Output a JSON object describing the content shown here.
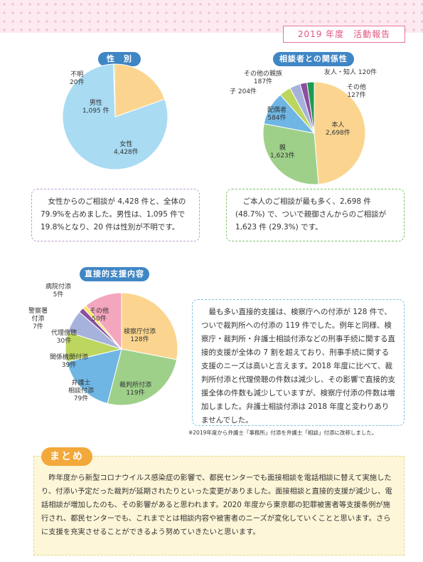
{
  "header": {
    "title": "2019 年度　活動報告"
  },
  "colors": {
    "blue_light": "#a9dbf3",
    "peach": "#fbd58f",
    "green": "#9ed08a",
    "teal_blue": "#6fb6e4",
    "olive": "#bcd65f",
    "lavender": "#a6b2dc",
    "purple": "#8c4f9e",
    "dark_green": "#1f9a52",
    "yellow": "#fde35a",
    "pink": "#f3a6bd",
    "pill_blue": "#3f86c5"
  },
  "charts": {
    "gender": {
      "title": "性　別",
      "labels": {
        "unknown": [
          "不明",
          "20件"
        ],
        "male": [
          "男性",
          "1,095 件"
        ],
        "female": [
          "女性",
          "4,428件"
        ]
      }
    },
    "relation": {
      "title": "相談者との関係性",
      "labels": {
        "self": [
          "本人",
          "2,698件"
        ],
        "parent": [
          "親",
          "1,623件"
        ],
        "spouse": [
          "配偶者",
          "584件"
        ],
        "child": [
          "子 204件"
        ],
        "other_relative": [
          "その他の親族",
          "187件"
        ],
        "friend": [
          "友人・知人 120件"
        ],
        "other": [
          "その他",
          "127件"
        ]
      }
    },
    "support": {
      "title": "直接的支援内容",
      "labels": {
        "prosecutor": [
          "検察庁付添",
          "128件"
        ],
        "court": [
          "裁判所付添",
          "119件"
        ],
        "lawyer": [
          "弁護士",
          "相談付添",
          "79件"
        ],
        "agency": [
          "関係機関付添",
          "39件"
        ],
        "agent": [
          "代理傍聴",
          "30件"
        ],
        "police": [
          "警察署",
          "付添",
          "7件"
        ],
        "hospital": [
          "病院付添",
          "5件"
        ],
        "other": [
          "その他",
          "50件"
        ]
      }
    }
  },
  "chart_data": [
    {
      "type": "pie",
      "title": "性　別",
      "categories": [
        "女性",
        "男性",
        "不明"
      ],
      "values": [
        4428,
        1095,
        20
      ]
    },
    {
      "type": "pie",
      "title": "相談者との関係性",
      "categories": [
        "本人",
        "親",
        "配偶者",
        "子",
        "その他の親族",
        "友人・知人",
        "その他"
      ],
      "values": [
        2698,
        1623,
        584,
        204,
        187,
        120,
        127
      ]
    },
    {
      "type": "pie",
      "title": "直接的支援内容",
      "categories": [
        "検察庁付添",
        "裁判所付添",
        "弁護士相談付添",
        "関係機関付添",
        "代理傍聴",
        "警察署付添",
        "病院付添",
        "その他"
      ],
      "values": [
        128,
        119,
        79,
        39,
        30,
        7,
        5,
        50
      ]
    }
  ],
  "notes": {
    "gender": "女性からのご相談が 4,428 件と、全体の 79.9%を占めました。男性は、1,095 件で 19.8%となり、20 件は性別が不明です。",
    "relation": "ご本人のご相談が最も多く、2,698 件 (48.7%) で、ついで親御さんからのご相談が 1,623 件 (29.3%) です。",
    "support": "最も多い直接的支援は、検察庁への付添が 128 件で、ついで裁判所への付添の 119 件でした。例年と同様、検察庁・裁判所・弁護士相談付添などの刑事手続に関する直接的支援が全体の 7 割を超えており、刑事手続に関する支援のニーズは高いと言えます。2018 年度に比べて、裁判所付添と代理傍聴の件数は減少し、その影響で直接的支援全体の件数も減少していますが、検察庁付添の件数は増加しました。弁護士相談付添は 2018 年度と変わりありませんでした。"
  },
  "footnote": "※2019年度から弁護士「事務所」付添を弁護士「相談」付添に改称しました。",
  "summary": {
    "tag": "まとめ",
    "text": "昨年度から新型コロナウイルス感染症の影響で、都民センターでも面接相談を電話相談に替えて実施したり、付添い予定だった裁判が延期されたりといった変更がありました。面接相談と直接的支援が減少し、電話相談が増加したのも、その影響があると思われます。2020 年度から東京都の犯罪被害者等支援条例が施行され、都民センターでも、これまでとは相談内容や被害者のニーズが変化していくことと思います。さらに支援を充実させることができるよう努めていきたいと思います。"
  }
}
